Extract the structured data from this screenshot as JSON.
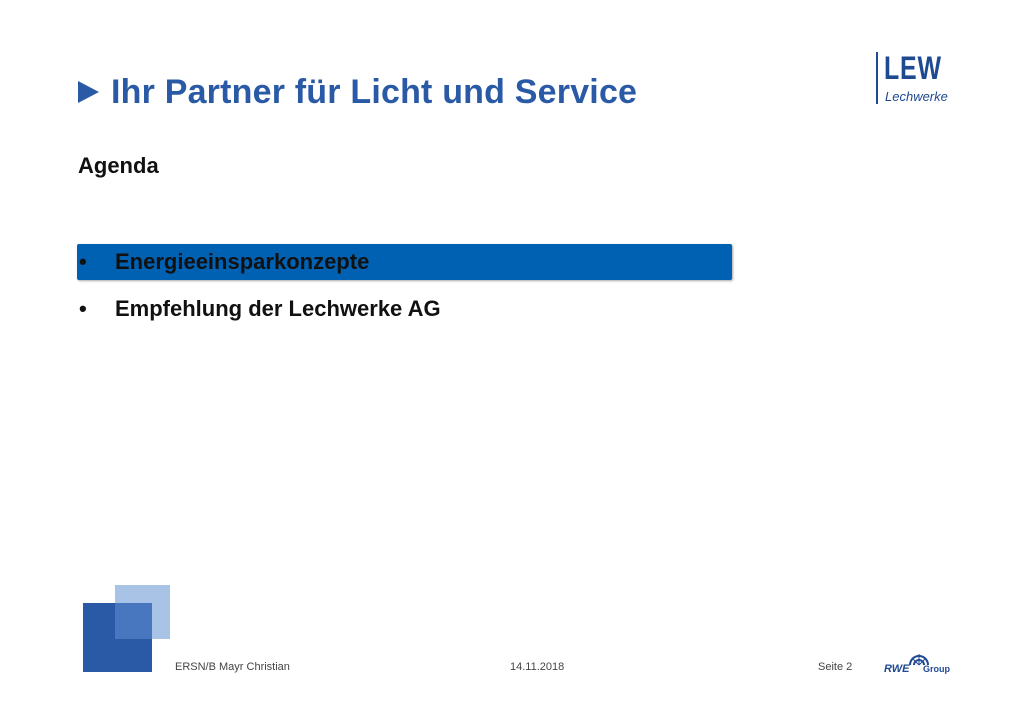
{
  "header": {
    "title": "Ihr Partner für Licht und Service",
    "arrow_icon": "play-triangle-icon"
  },
  "logo": {
    "main": "LEW",
    "sub": "Lechwerke"
  },
  "agenda": {
    "heading": "Agenda",
    "items": [
      {
        "bullet": "•",
        "label": "Energieeinsparkonzepte",
        "active": true
      },
      {
        "bullet": "•",
        "label": "Empfehlung der Lechwerke AG",
        "active": false
      }
    ]
  },
  "footer": {
    "author": "ERSN/B Mayr Christian",
    "date": "14.11.2018",
    "page": "Seite 2"
  },
  "rwe_logo": {
    "name": "RWE",
    "group": "Group"
  },
  "colors": {
    "brand_blue": "#2a5aa5",
    "highlight_blue": "#0060b1",
    "light_blue": "#a9c3e6"
  }
}
